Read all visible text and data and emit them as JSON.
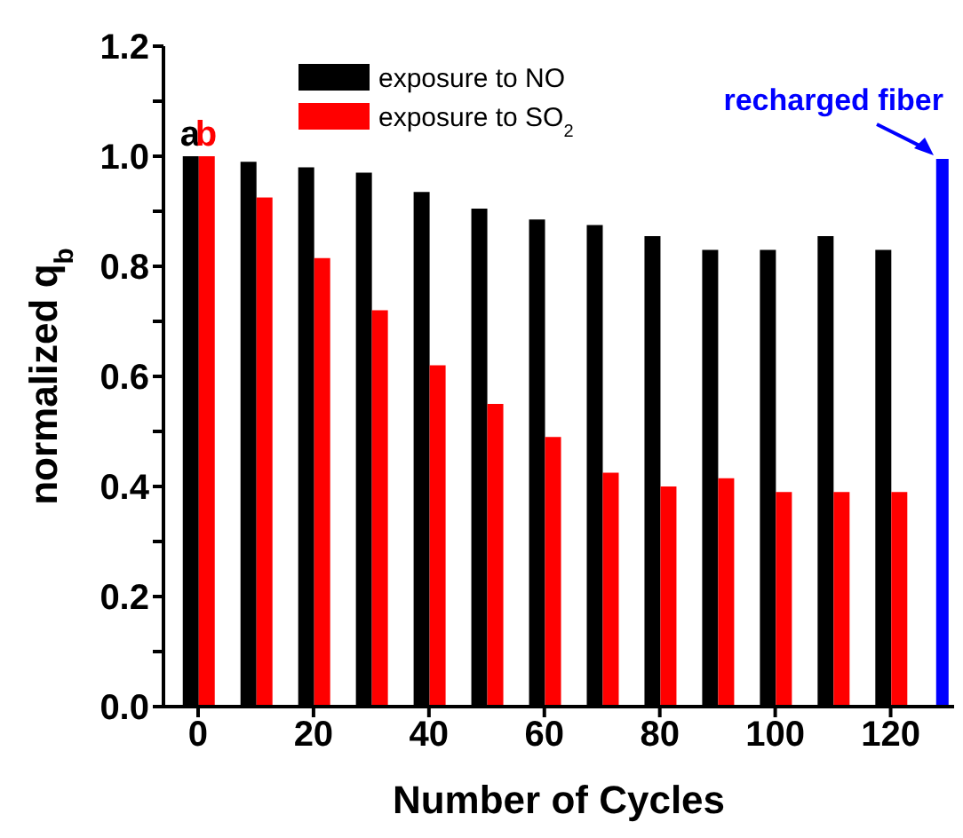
{
  "chart_data": {
    "type": "bar",
    "xlabel": "Number of Cycles",
    "ylabel": "normalized q$_{b}$",
    "x": [
      0,
      10,
      20,
      30,
      40,
      50,
      60,
      70,
      80,
      90,
      100,
      110,
      120
    ],
    "series": [
      {
        "name": "exposure to NO",
        "color": "#000000",
        "values": [
          1.0,
          0.99,
          0.98,
          0.97,
          0.935,
          0.905,
          0.885,
          0.875,
          0.855,
          0.83,
          0.83,
          0.855,
          0.83
        ]
      },
      {
        "name": "exposure to SO$_{2}$",
        "color": "#ff0000",
        "values": [
          1.0,
          0.925,
          0.815,
          0.72,
          0.62,
          0.55,
          0.49,
          0.425,
          0.4,
          0.415,
          0.39,
          0.39,
          0.39
        ]
      },
      {
        "name": "recharged fiber",
        "color": "#0000ff",
        "x": [
          129
        ],
        "values": [
          0.995
        ]
      }
    ],
    "annotations": [
      {
        "text": "a",
        "x": 0,
        "y": 1.0
      },
      {
        "text": "b",
        "x": 0,
        "y": 1.0
      }
    ],
    "xlim": [
      -6,
      131
    ],
    "xticks": [
      0,
      20,
      40,
      60,
      80,
      100,
      120
    ],
    "ylim": [
      0,
      1.2
    ],
    "yticks": [
      {
        "value": 0,
        "label": "0.0"
      },
      {
        "value": 0.1,
        "label": null
      },
      0.2,
      {
        "value": 0.3,
        "label": null
      },
      0.4,
      {
        "value": 0.5,
        "label": null
      },
      0.6,
      {
        "value": 0.7,
        "label": null
      },
      0.8,
      {
        "value": 0.9,
        "label": null
      },
      {
        "value": 1,
        "label": "1.0"
      },
      {
        "value": 1.1,
        "label": null
      },
      1.2
    ],
    "legend": "top",
    "grid": false
  }
}
